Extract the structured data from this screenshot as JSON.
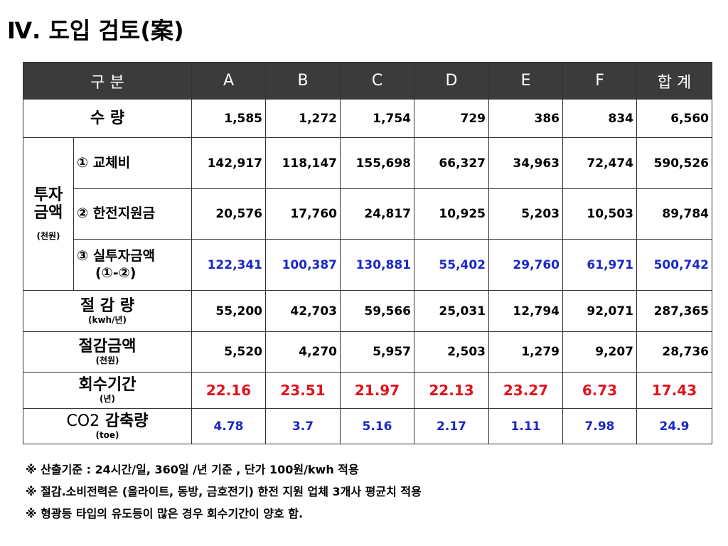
{
  "title": "Ⅳ. 도입 검토(案)",
  "header": [
    "구 분",
    "A",
    "B",
    "C",
    "D",
    "E",
    "F",
    "합 계"
  ],
  "rows": {
    "qty": {
      "label": "수 량",
      "values": [
        "1,585",
        "1,272",
        "1,754",
        "729",
        "386",
        "834",
        "6,560"
      ]
    },
    "invest_group": {
      "label_line1": "투자",
      "label_line2": "금액",
      "sub": "(천원)"
    },
    "replace": {
      "label": "① 교체비",
      "values": [
        "142,917",
        "118,147",
        "155,698",
        "66,327",
        "34,963",
        "72,474",
        "590,526"
      ]
    },
    "subsidy": {
      "label": "② 한전지원금",
      "values": [
        "20,576",
        "17,760",
        "24,817",
        "10,925",
        "5,203",
        "10,503",
        "89,784"
      ]
    },
    "actual": {
      "label_line1": "③ 실투자금액",
      "label_line2": "(①-②)",
      "values": [
        "122,341",
        "100,387",
        "130,881",
        "55,402",
        "29,760",
        "61,971",
        "500,742"
      ]
    },
    "saving": {
      "label": "절 감 량",
      "sub": "(kwh/년)",
      "values": [
        "55,200",
        "42,703",
        "59,566",
        "25,031",
        "12,794",
        "92,071",
        "287,365"
      ]
    },
    "saving_amt": {
      "label": "절감금액",
      "sub": "(천원)",
      "values": [
        "5,520",
        "4,270",
        "5,957",
        "2,503",
        "1,279",
        "9,207",
        "28,736"
      ]
    },
    "payback": {
      "label": "회수기간",
      "sub": "(년)",
      "values": [
        "22.16",
        "23.51",
        "21.97",
        "22.13",
        "23.27",
        "6.73",
        "17.43"
      ]
    },
    "co2": {
      "label_prefix": "CO2",
      "label_suffix": " 감축량",
      "sub": "(toe)",
      "values": [
        "4.78",
        "3.7",
        "5.16",
        "2.17",
        "1.11",
        "7.98",
        "24.9"
      ]
    }
  },
  "notes": [
    "※ 산출기준 : 24시간/일,  360일 /년 기준 , 단가 100원/kwh 적용",
    "※ 절감.소비전력은 (올라이트, 동방, 금호전기) 한전 지원 업체 3개사  평균치 적용",
    "※ 형광등 타입의 유도등이 많은 경우 회수기간이 양호 함."
  ],
  "colors": {
    "header_bg": "#3b3b3b",
    "blue": "#1a28c8",
    "red": "#e0141e"
  }
}
